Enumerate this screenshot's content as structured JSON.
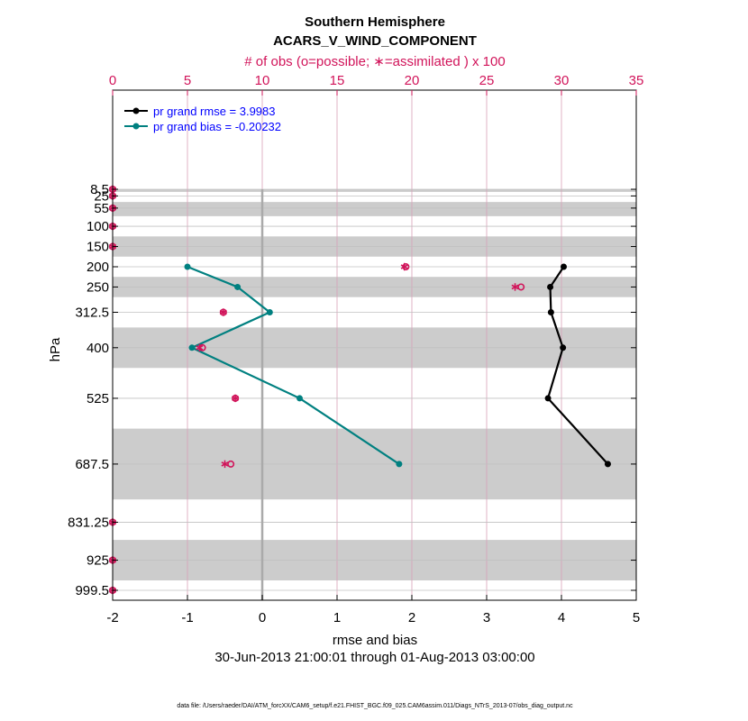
{
  "chart_data": {
    "type": "line",
    "title": "Southern Hemisphere",
    "subtitle": "ACARS_V_WIND_COMPONENT",
    "top_axis_label": "# of obs (o=possible; ∗=assimilated ) x 100",
    "xlabel": "rmse and bias",
    "ylabel": "hPa",
    "date_range": "30-Jun-2013 21:00:01 through 01-Aug-2013 03:00:00",
    "footer": "data file: /Users/raeder/DAI/ATM_forcXX/CAM6_setup/f.e21.FHIST_BGC.f09_025.CAM6assim.011/Diags_NTrS_2013-07/obs_diag_output.nc",
    "xlim": [
      -2,
      5
    ],
    "x_ticks": [
      "-2",
      "-1",
      "0",
      "1",
      "2",
      "3",
      "4",
      "5"
    ],
    "top_xlim": [
      0,
      35
    ],
    "top_ticks": [
      "0",
      "5",
      "10",
      "15",
      "20",
      "25",
      "30",
      "35"
    ],
    "y_levels": [
      8.5,
      25,
      55,
      100,
      150,
      200,
      250,
      312.5,
      400,
      525,
      687.5,
      831.25,
      925,
      999.5
    ],
    "y_tick_labels": [
      "8.5",
      "25",
      "55",
      "100",
      "150",
      "200",
      "250",
      "312.5",
      "400",
      "525",
      "687.5",
      "831.25",
      "925",
      "999.5"
    ],
    "bands": [
      [
        8.5,
        15
      ],
      [
        40,
        75
      ],
      [
        125,
        175
      ],
      [
        225,
        275
      ],
      [
        350,
        450
      ],
      [
        600,
        775
      ],
      [
        875,
        975
      ]
    ],
    "series": [
      {
        "name": "pr grand rmse = 3.9983",
        "color": "#000000",
        "levels": [
          200,
          250,
          312.5,
          400,
          525,
          687.5
        ],
        "values": [
          4.03,
          3.85,
          3.86,
          4.02,
          3.82,
          4.62
        ]
      },
      {
        "name": "pr grand bias = -0.20232",
        "color": "#008080",
        "levels": [
          200,
          250,
          312.5,
          400,
          525,
          687.5
        ],
        "values": [
          -1.0,
          -0.33,
          0.1,
          -0.94,
          0.5,
          1.83
        ]
      }
    ],
    "obs_possible": {
      "color": "#d1145a",
      "levels": [
        8.5,
        25,
        55,
        100,
        150,
        200,
        250,
        312.5,
        400,
        525,
        687.5,
        831.25,
        925,
        999.5
      ],
      "counts": [
        0,
        0,
        0,
        0,
        0,
        19.6,
        27.3,
        7.4,
        6.0,
        8.2,
        7.9,
        0,
        0,
        0
      ]
    },
    "obs_assimilated": {
      "color": "#d1145a",
      "levels": [
        8.5,
        25,
        55,
        100,
        150,
        200,
        250,
        312.5,
        400,
        525,
        687.5,
        831.25,
        925,
        999.5
      ],
      "counts": [
        0,
        0,
        0,
        0,
        0,
        19.5,
        26.9,
        7.4,
        5.8,
        8.2,
        7.5,
        0,
        0,
        0
      ]
    },
    "grid": true,
    "legend_position": "top-left"
  }
}
